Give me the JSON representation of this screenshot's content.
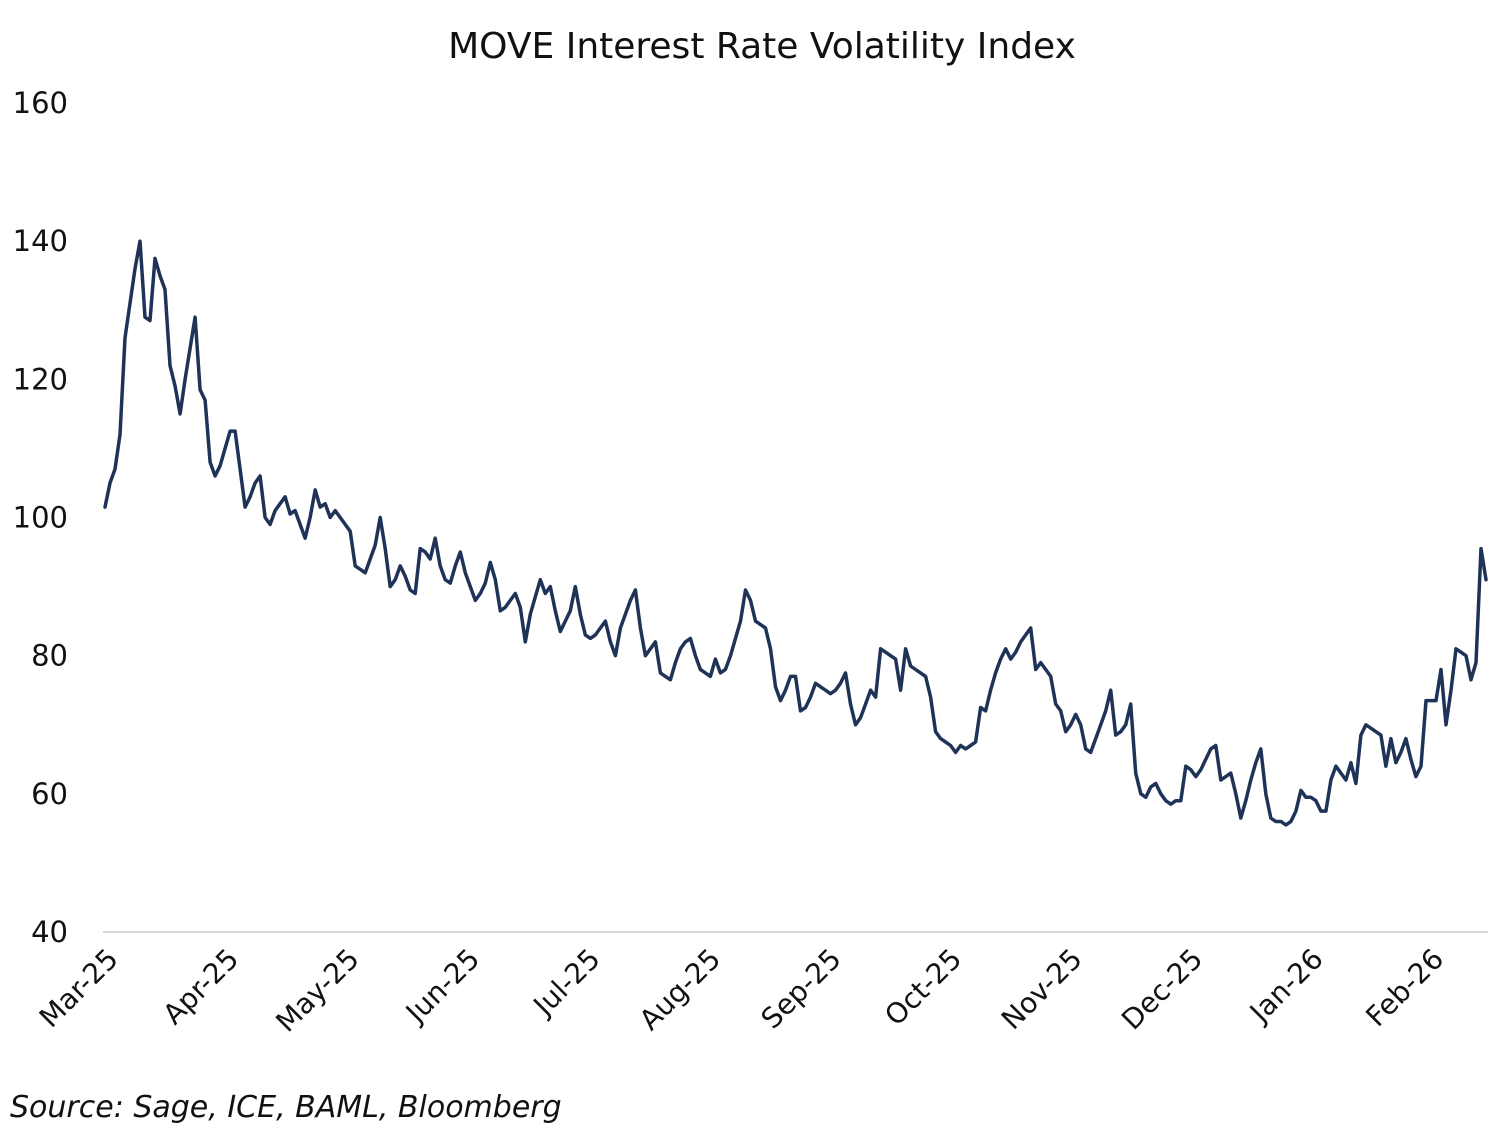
{
  "chart_data": {
    "type": "line",
    "title": "MOVE Interest Rate Volatility Index",
    "xlabel": "",
    "ylabel": "",
    "ylim": [
      40,
      160
    ],
    "y_ticks": [
      "40",
      "60",
      "80",
      "100",
      "120",
      "140",
      "160"
    ],
    "x_ticks": [
      "Mar-25",
      "Apr-25",
      "May-25",
      "Jun-25",
      "Jul-25",
      "Aug-25",
      "Sep-25",
      "Oct-25",
      "Nov-25",
      "Dec-25",
      "Jan-26",
      "Feb-26"
    ],
    "grid": false,
    "legend": "none",
    "line_color": "#1f3358",
    "series": [
      {
        "values": [
          101.5,
          105,
          107,
          112,
          126,
          131,
          136,
          140,
          129,
          128.5,
          137.5,
          135,
          133,
          122,
          119,
          115,
          120,
          124.5,
          129,
          118.5,
          117,
          108,
          106,
          107.5,
          110,
          112.5,
          112.5,
          107,
          101.5,
          103,
          105,
          106,
          100,
          99,
          101,
          102,
          103,
          100.5,
          101,
          99,
          97,
          100,
          104,
          101.5,
          102,
          100,
          101,
          100,
          99,
          98,
          93,
          92.5,
          92,
          94,
          96,
          100,
          95.5,
          90,
          91,
          93,
          91.5,
          89.5,
          89,
          95.5,
          95,
          94,
          97,
          93,
          91,
          90.5,
          93,
          95,
          92,
          90,
          88,
          89,
          90.5,
          93.5,
          91,
          86.5,
          87,
          88,
          89,
          87,
          82,
          86,
          88.5,
          91,
          89,
          90,
          86.5,
          83.5,
          85,
          86.5,
          90,
          86,
          83,
          82.5,
          83,
          84,
          85,
          82,
          80,
          84,
          86,
          88,
          89.5,
          84,
          80,
          81,
          82,
          77.5,
          77,
          76.5,
          79,
          81,
          82,
          82.5,
          80,
          78,
          77.5,
          77,
          79.5,
          77.5,
          78,
          80,
          82.5,
          85,
          89.5,
          88,
          85,
          84.5,
          84,
          81,
          75.5,
          73.5,
          75,
          77,
          77,
          72,
          72.5,
          74,
          76,
          75.5,
          75,
          74.5,
          75,
          76,
          77.5,
          73,
          70,
          71,
          73,
          75,
          74,
          81,
          80.5,
          80,
          79.5,
          75,
          81,
          78.5,
          78,
          77.5,
          77,
          74,
          69,
          68,
          67.5,
          67,
          66,
          67,
          66.5,
          67,
          67.5,
          72.5,
          72,
          75,
          77.5,
          79.5,
          81,
          79.5,
          80.5,
          82,
          83,
          84,
          78,
          79,
          78,
          77,
          73,
          72,
          69,
          70,
          71.5,
          70,
          66.5,
          66,
          68,
          70,
          72,
          75,
          68.5,
          69,
          70,
          73,
          63,
          60,
          59.5,
          61,
          61.5,
          60,
          59,
          58.5,
          59,
          59,
          64,
          63.5,
          62.5,
          63.5,
          65,
          66.5,
          67,
          62,
          62.5,
          63,
          60,
          56.5,
          59,
          62,
          64.5,
          66.5,
          60,
          56.5,
          56,
          56,
          55.5,
          56,
          57.5,
          60.5,
          59.5,
          59.5,
          59,
          57.5,
          57.5,
          62,
          64,
          63,
          62,
          64.5,
          61.5,
          68.5,
          70,
          69.5,
          69,
          68.5,
          64,
          68,
          64.5,
          66,
          68,
          65,
          62.5,
          64,
          73.5,
          73.5,
          73.5,
          78,
          70,
          75,
          81,
          80.5,
          80,
          76.5,
          79,
          95.5,
          91
        ]
      }
    ],
    "source_note": "Source: Sage, ICE, BAML, Bloomberg"
  }
}
